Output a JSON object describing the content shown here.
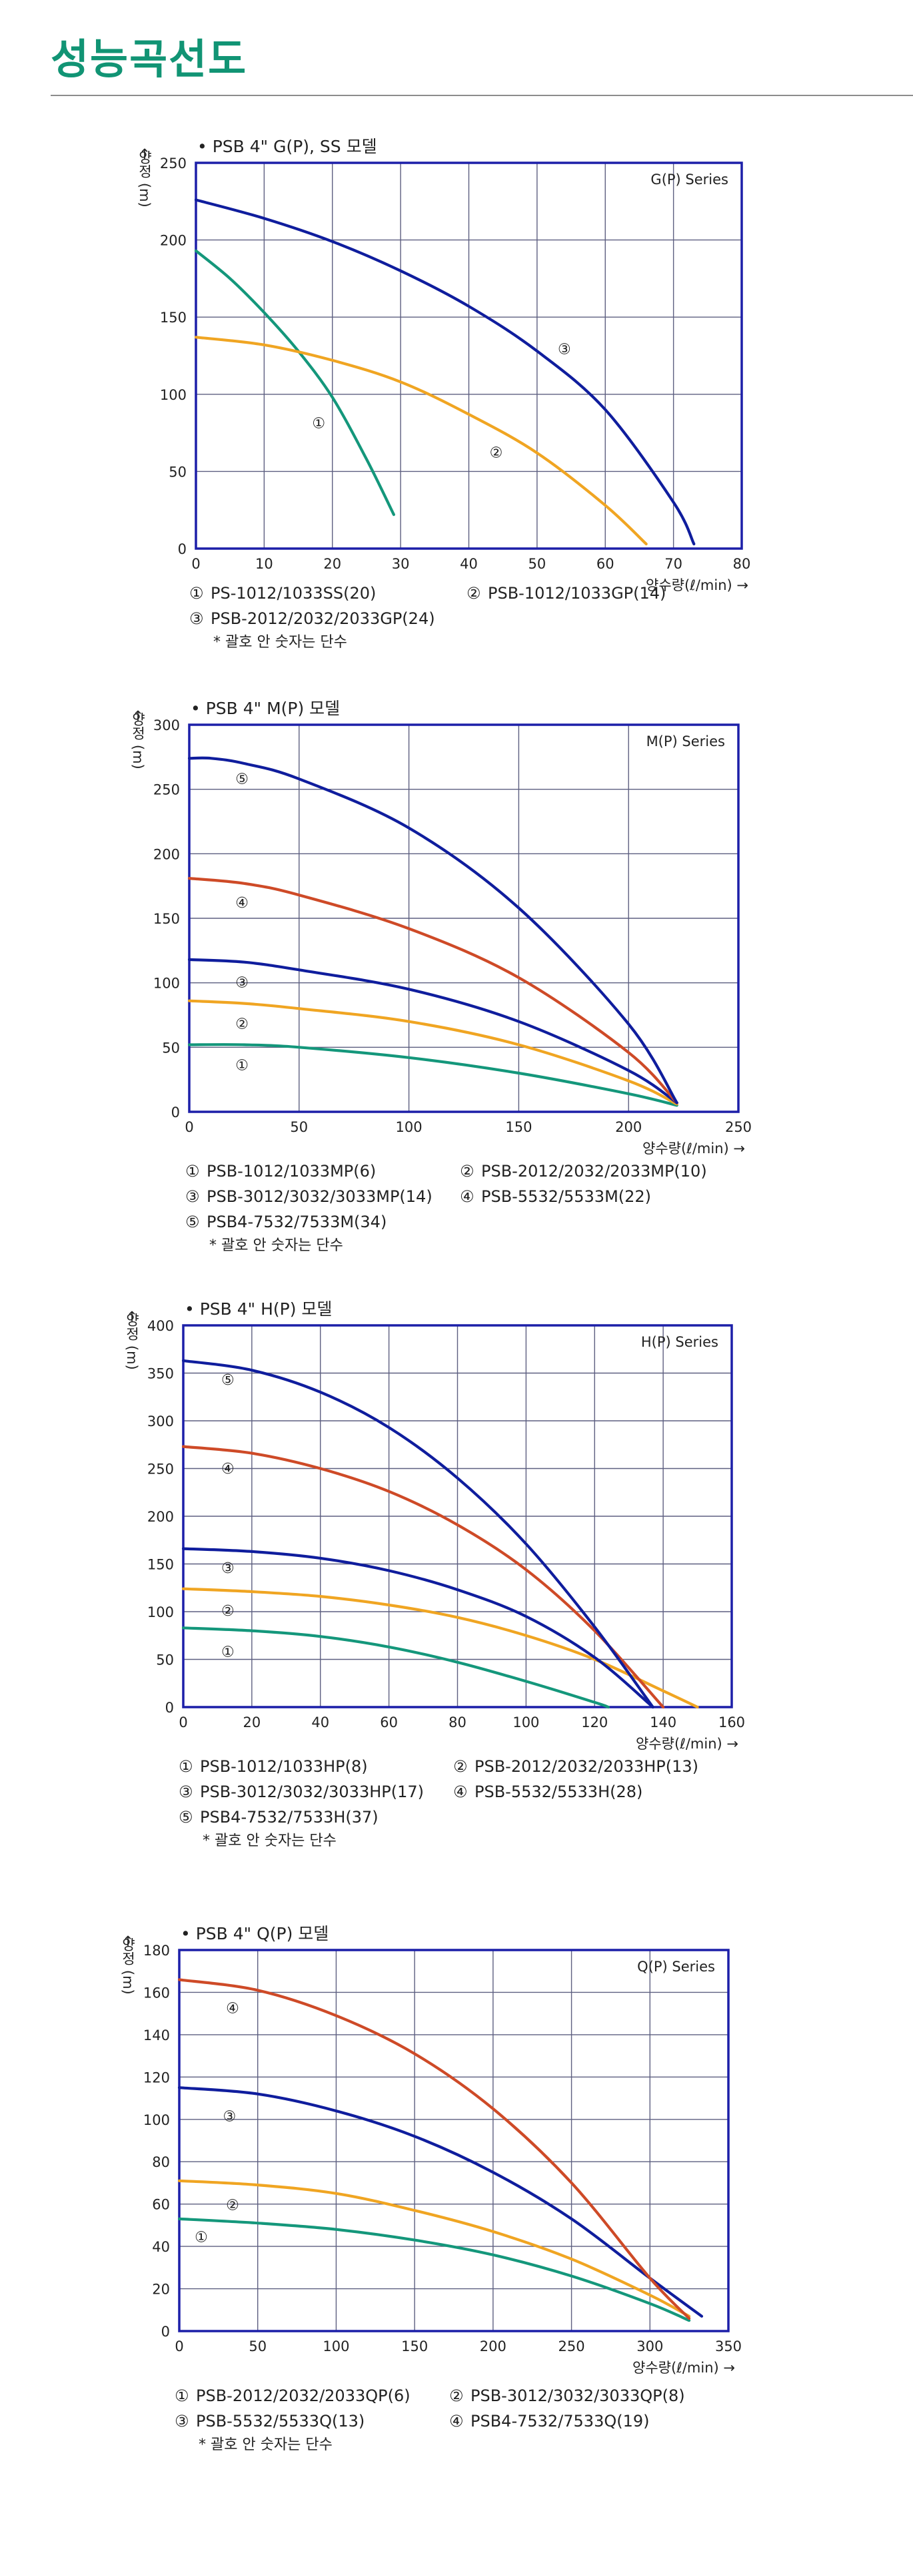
{
  "page": {
    "title": "성능곡선도"
  },
  "colors": {
    "title": "#119474",
    "frame": "#1c1fa8",
    "grid": "#5d5f80",
    "series_1": "#14977b",
    "series_2": "#f0a522",
    "series_3": "#0f1d9d",
    "series_4": "#ce4a27",
    "series_5": "#0f1d9d"
  },
  "chart_data": [
    {
      "type": "line",
      "model_title": "• PSB 4\" G(P), SS 모델",
      "series_title": "G(P) Series",
      "ylabel": "양정 (m)",
      "ylabel_arrow": "↑",
      "xlabel": "양수량(ℓ/min) →",
      "xlim": [
        0,
        80
      ],
      "ylim": [
        0,
        250
      ],
      "xticks": [
        0,
        10,
        20,
        30,
        40,
        50,
        60,
        70,
        80
      ],
      "yticks": [
        0,
        50,
        100,
        150,
        200,
        250
      ],
      "grid": true,
      "series": [
        {
          "marker": "①",
          "x": [
            0,
            5,
            10,
            15,
            20,
            25,
            29
          ],
          "y": [
            193,
            175,
            153,
            128,
            98,
            58,
            22
          ],
          "label_at": [
            18,
            82
          ]
        },
        {
          "marker": "②",
          "x": [
            0,
            10,
            20,
            30,
            40,
            50,
            60,
            66
          ],
          "y": [
            137,
            132,
            122,
            108,
            87,
            62,
            28,
            3
          ],
          "label_at": [
            44,
            63
          ]
        },
        {
          "marker": "③",
          "x": [
            0,
            10,
            20,
            30,
            40,
            50,
            60,
            70,
            73
          ],
          "y": [
            226,
            214,
            199,
            180,
            157,
            128,
            90,
            30,
            3
          ],
          "label_at": [
            54,
            130
          ]
        }
      ],
      "legend": [
        {
          "marker": "①",
          "text": "PS-1012/1033SS(20)"
        },
        {
          "marker": "②",
          "text": "PSB-1012/1033GP(14)"
        },
        {
          "marker": "③",
          "text": "PSB-2012/2032/2033GP(24)"
        }
      ],
      "note": "* 괄호 안 숫자는 단수"
    },
    {
      "type": "line",
      "model_title": "• PSB 4\" M(P) 모델",
      "series_title": "M(P) Series",
      "ylabel": "양정 (m)",
      "ylabel_arrow": "↑",
      "xlabel": "양수량(ℓ/min) →",
      "xlim": [
        0,
        250
      ],
      "ylim": [
        0,
        300
      ],
      "xticks": [
        0,
        50,
        100,
        150,
        200,
        250
      ],
      "yticks": [
        0,
        50,
        100,
        150,
        200,
        250,
        300
      ],
      "grid": true,
      "series": [
        {
          "marker": "①",
          "x": [
            0,
            25,
            50,
            100,
            150,
            200,
            222
          ],
          "y": [
            52,
            52,
            50,
            42,
            30,
            14,
            5
          ],
          "label_at": [
            24,
            37
          ]
        },
        {
          "marker": "②",
          "x": [
            0,
            25,
            50,
            100,
            150,
            200,
            222
          ],
          "y": [
            86,
            84,
            80,
            70,
            52,
            24,
            6
          ],
          "label_at": [
            24,
            69
          ]
        },
        {
          "marker": "③",
          "x": [
            0,
            25,
            50,
            100,
            150,
            200,
            222
          ],
          "y": [
            118,
            116,
            110,
            95,
            70,
            32,
            7
          ],
          "label_at": [
            24,
            101
          ]
        },
        {
          "marker": "④",
          "x": [
            0,
            25,
            50,
            100,
            150,
            200,
            222
          ],
          "y": [
            181,
            177,
            168,
            142,
            104,
            46,
            7
          ],
          "label_at": [
            24,
            163
          ]
        },
        {
          "marker": "⑤",
          "x": [
            0,
            10,
            25,
            50,
            100,
            150,
            200,
            222
          ],
          "y": [
            274,
            274,
            270,
            258,
            220,
            158,
            68,
            7
          ],
          "label_at": [
            24,
            259
          ]
        }
      ],
      "legend": [
        {
          "marker": "①",
          "text": "PSB-1012/1033MP(6)"
        },
        {
          "marker": "②",
          "text": "PSB-2012/2032/2033MP(10)"
        },
        {
          "marker": "③",
          "text": "PSB-3012/3032/3033MP(14)"
        },
        {
          "marker": "④",
          "text": "PSB-5532/5533M(22)"
        },
        {
          "marker": "⑤",
          "text": "PSB4-7532/7533M(34)"
        }
      ],
      "note": "* 괄호 안 숫자는 단수"
    },
    {
      "type": "line",
      "model_title": "• PSB 4\" H(P) 모델",
      "series_title": "H(P) Series",
      "ylabel": "양정 (m)",
      "ylabel_arrow": "↑",
      "xlabel": "양수량(ℓ/min) →",
      "xlim": [
        0,
        160
      ],
      "ylim": [
        0,
        400
      ],
      "xticks": [
        0,
        20,
        40,
        60,
        80,
        100,
        120,
        140,
        160
      ],
      "yticks": [
        0,
        50,
        100,
        150,
        200,
        250,
        300,
        350,
        400
      ],
      "grid": true,
      "series": [
        {
          "marker": "①",
          "x": [
            0,
            20,
            40,
            60,
            80,
            100,
            120,
            124
          ],
          "y": [
            83,
            80,
            74,
            63,
            47,
            27,
            5,
            0
          ],
          "label_at": [
            13,
            59
          ]
        },
        {
          "marker": "②",
          "x": [
            0,
            20,
            40,
            60,
            80,
            100,
            120,
            140,
            150
          ],
          "y": [
            124,
            121,
            116,
            107,
            94,
            75,
            50,
            17,
            0
          ],
          "label_at": [
            13,
            102
          ]
        },
        {
          "marker": "③",
          "x": [
            0,
            20,
            40,
            60,
            80,
            100,
            120,
            137
          ],
          "y": [
            166,
            163,
            156,
            143,
            123,
            95,
            52,
            0
          ],
          "label_at": [
            13,
            147
          ]
        },
        {
          "marker": "④",
          "x": [
            0,
            20,
            40,
            60,
            80,
            100,
            120,
            140
          ],
          "y": [
            273,
            266,
            250,
            226,
            191,
            144,
            80,
            0
          ],
          "label_at": [
            13,
            251
          ]
        },
        {
          "marker": "⑤",
          "x": [
            0,
            20,
            40,
            60,
            80,
            100,
            120,
            137
          ],
          "y": [
            363,
            353,
            330,
            293,
            240,
            171,
            84,
            0
          ],
          "label_at": [
            13,
            344
          ]
        }
      ],
      "legend": [
        {
          "marker": "①",
          "text": "PSB-1012/1033HP(8)"
        },
        {
          "marker": "②",
          "text": "PSB-2012/2032/2033HP(13)"
        },
        {
          "marker": "③",
          "text": "PSB-3012/3032/3033HP(17)"
        },
        {
          "marker": "④",
          "text": "PSB-5532/5533H(28)"
        },
        {
          "marker": "⑤",
          "text": "PSB4-7532/7533H(37)"
        }
      ],
      "note": "* 괄호 안 숫자는 단수"
    },
    {
      "type": "line",
      "model_title": "• PSB 4\" Q(P) 모델",
      "series_title": "Q(P) Series",
      "ylabel": "양정 (m)",
      "ylabel_arrow": "↑",
      "xlabel": "양수량(ℓ/min) →",
      "xlim": [
        0,
        350
      ],
      "ylim": [
        0,
        180
      ],
      "xticks": [
        0,
        50,
        100,
        150,
        200,
        250,
        300,
        350
      ],
      "yticks": [
        0,
        20,
        40,
        60,
        80,
        100,
        120,
        140,
        160,
        180
      ],
      "grid": true,
      "series": [
        {
          "marker": "①",
          "x": [
            0,
            50,
            100,
            150,
            200,
            250,
            300,
            325
          ],
          "y": [
            53,
            51,
            48,
            43,
            36,
            26,
            13,
            5
          ],
          "label_at": [
            14,
            45
          ]
        },
        {
          "marker": "②",
          "x": [
            0,
            50,
            100,
            150,
            200,
            250,
            300,
            325
          ],
          "y": [
            71,
            69,
            65,
            57,
            47,
            34,
            17,
            7
          ],
          "label_at": [
            34,
            60
          ]
        },
        {
          "marker": "③",
          "x": [
            0,
            50,
            100,
            150,
            200,
            250,
            300,
            333
          ],
          "y": [
            115,
            112,
            104,
            92,
            75,
            53,
            25,
            7
          ],
          "label_at": [
            32,
            102
          ]
        },
        {
          "marker": "④",
          "x": [
            0,
            50,
            100,
            150,
            200,
            250,
            300,
            325
          ],
          "y": [
            166,
            161,
            149,
            131,
            105,
            70,
            25,
            6
          ],
          "label_at": [
            34,
            153
          ]
        }
      ],
      "legend": [
        {
          "marker": "①",
          "text": "PSB-2012/2032/2033QP(6)"
        },
        {
          "marker": "②",
          "text": "PSB-3012/3032/3033QP(8)"
        },
        {
          "marker": "③",
          "text": "PSB-5532/5533Q(13)"
        },
        {
          "marker": "④",
          "text": "PSB4-7532/7533Q(19)"
        }
      ],
      "note": "* 괄호 안 숫자는 단수"
    }
  ]
}
